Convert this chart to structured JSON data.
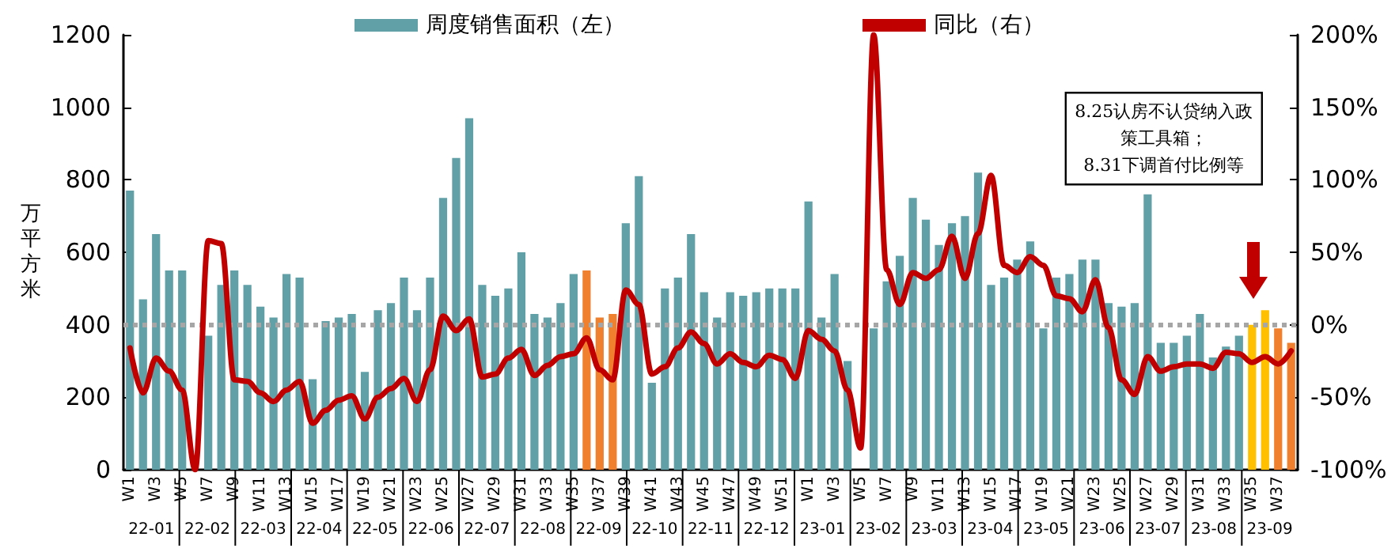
{
  "chart_data": {
    "type": "bar",
    "ylabel": "万平方米",
    "ylim": [
      0,
      1200
    ],
    "yticks": [
      0,
      200,
      400,
      600,
      800,
      1000,
      1200
    ],
    "y2lim": [
      -100,
      200
    ],
    "y2ticks": [
      {
        "value": -100,
        "label": "-100%"
      },
      {
        "value": -50,
        "label": "-50%"
      },
      {
        "value": 0,
        "label": "0%"
      },
      {
        "value": 50,
        "label": "50%"
      },
      {
        "value": 100,
        "label": "100%"
      },
      {
        "value": 150,
        "label": "150%"
      },
      {
        "value": 200,
        "label": "200%"
      }
    ],
    "legend": "top",
    "grid": false,
    "marker": "none",
    "categories": [
      "W1",
      null,
      "W3",
      null,
      "W5",
      null,
      "W7",
      null,
      "W9",
      null,
      "W11",
      null,
      "W13",
      null,
      "W15",
      null,
      "W17",
      null,
      "W19",
      null,
      "W21",
      null,
      "W23",
      null,
      "W25",
      null,
      "W27",
      null,
      "W29",
      null,
      "W31",
      null,
      "W33",
      null,
      "W35",
      null,
      "W37",
      null,
      "W39",
      null,
      "W41",
      null,
      "W43",
      null,
      "W45",
      null,
      "W47",
      null,
      "W49",
      null,
      "W51",
      null,
      "W1",
      null,
      "W3",
      null,
      "W5",
      null,
      "W7",
      null,
      "W9",
      null,
      "W11",
      null,
      "W13",
      null,
      "W15",
      null,
      "W17",
      null,
      "W19",
      null,
      "W21",
      null,
      "W23",
      null,
      "W25",
      null,
      "W27",
      null,
      "W29",
      null,
      "W31",
      null,
      "W33",
      null,
      "W35",
      null,
      "W37",
      null
    ],
    "series": [
      {
        "name": "周度销售面积（左）",
        "color": "#62a0a8",
        "colors": [
          "#62a0a8",
          "#62a0a8",
          "#62a0a8",
          "#62a0a8",
          "#62a0a8",
          "#62a0a8",
          "#62a0a8",
          "#62a0a8",
          "#62a0a8",
          "#62a0a8",
          "#62a0a8",
          "#62a0a8",
          "#62a0a8",
          "#62a0a8",
          "#62a0a8",
          "#62a0a8",
          "#62a0a8",
          "#62a0a8",
          "#62a0a8",
          "#62a0a8",
          "#62a0a8",
          "#62a0a8",
          "#62a0a8",
          "#62a0a8",
          "#62a0a8",
          "#62a0a8",
          "#62a0a8",
          "#62a0a8",
          "#62a0a8",
          "#62a0a8",
          "#62a0a8",
          "#62a0a8",
          "#62a0a8",
          "#62a0a8",
          "#62a0a8",
          "#f0802e",
          "#f0802e",
          "#f0802e",
          "#62a0a8",
          "#62a0a8",
          "#62a0a8",
          "#62a0a8",
          "#62a0a8",
          "#62a0a8",
          "#62a0a8",
          "#62a0a8",
          "#62a0a8",
          "#62a0a8",
          "#62a0a8",
          "#62a0a8",
          "#62a0a8",
          "#62a0a8",
          "#62a0a8",
          "#62a0a8",
          "#62a0a8",
          "#62a0a8",
          "#62a0a8",
          "#62a0a8",
          "#62a0a8",
          "#62a0a8",
          "#62a0a8",
          "#62a0a8",
          "#62a0a8",
          "#62a0a8",
          "#62a0a8",
          "#62a0a8",
          "#62a0a8",
          "#62a0a8",
          "#62a0a8",
          "#62a0a8",
          "#62a0a8",
          "#62a0a8",
          "#62a0a8",
          "#62a0a8",
          "#62a0a8",
          "#62a0a8",
          "#62a0a8",
          "#62a0a8",
          "#62a0a8",
          "#62a0a8",
          "#62a0a8",
          "#62a0a8",
          "#62a0a8",
          "#62a0a8",
          "#62a0a8",
          "#62a0a8",
          "#ffc000",
          "#ffc000",
          "#f0802e",
          "#f0802e"
        ],
        "values": [
          770,
          470,
          650,
          550,
          550,
          null,
          370,
          510,
          550,
          510,
          450,
          420,
          540,
          530,
          250,
          410,
          420,
          430,
          270,
          440,
          460,
          530,
          440,
          530,
          750,
          860,
          970,
          510,
          480,
          500,
          600,
          430,
          420,
          460,
          540,
          550,
          420,
          430,
          680,
          810,
          240,
          500,
          530,
          650,
          490,
          420,
          490,
          480,
          490,
          500,
          500,
          500,
          740,
          420,
          540,
          300,
          null,
          390,
          520,
          590,
          750,
          690,
          620,
          680,
          700,
          820,
          510,
          530,
          580,
          630,
          390,
          530,
          540,
          580,
          580,
          460,
          450,
          460,
          760,
          350,
          350,
          370,
          430,
          310,
          340,
          370,
          400,
          440,
          390,
          350
        ]
      },
      {
        "name": "同比（右）",
        "type": "line",
        "axis": "y2",
        "color": "#c00000",
        "values": [
          -16,
          -47,
          -23,
          -32,
          -45,
          -100,
          58,
          56,
          -38,
          -39,
          -47,
          -53,
          -45,
          -39,
          -68,
          -59,
          -52,
          -49,
          -65,
          -50,
          -44,
          -37,
          -53,
          -31,
          6,
          -4,
          4,
          -36,
          -34,
          -23,
          -17,
          -35,
          -28,
          -22,
          -20,
          -9,
          -31,
          -38,
          24,
          14,
          -34,
          -29,
          -16,
          -5,
          -13,
          -27,
          -20,
          -26,
          -29,
          -21,
          -24,
          -37,
          -4,
          -10,
          -18,
          -45,
          -85,
          200,
          38,
          14,
          36,
          32,
          38,
          61,
          32,
          63,
          103,
          41,
          36,
          47,
          41,
          20,
          18,
          9,
          31,
          -2,
          -38,
          -48,
          -22,
          -32,
          -29,
          -27,
          -27,
          -30,
          -19,
          -20,
          -26,
          -22,
          -27,
          -18
        ]
      }
    ],
    "ref_lines": [
      {
        "axis": "y2",
        "value": 0,
        "color": "#a6a6a6",
        "line_style": "dotted"
      }
    ],
    "annotations": [
      "8.25认房不认贷纳入政策工具箱；8.31下调首付比例等",
      "22-01",
      "22-02",
      "22-03",
      "22-04",
      "22-05",
      "22-06",
      "22-07",
      "22-08",
      "22-09",
      "22-10",
      "22-11",
      "22-12",
      "23-01",
      "23-02",
      "23-03",
      "23-04",
      "23-05",
      "23-06",
      "23-07",
      "23-08",
      "23-09"
    ]
  }
}
